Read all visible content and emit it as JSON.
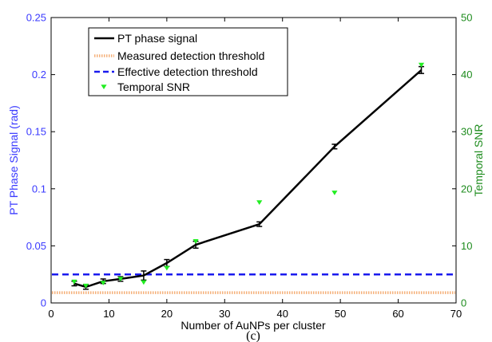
{
  "chart_data": {
    "type": "line",
    "caption": "(c)",
    "xlabel": "Number of AuNPs per cluster",
    "ylabel_left": "PT Phase Signal (rad)",
    "ylabel_right": "Temporal SNR",
    "xlim": [
      0,
      70
    ],
    "ylim_left": [
      0,
      0.25
    ],
    "ylim_right": [
      0,
      50
    ],
    "x_ticks": [
      "0",
      "10",
      "20",
      "30",
      "40",
      "50",
      "60",
      "70"
    ],
    "y_left_ticks": [
      "0",
      "0.05",
      "0.1",
      "0.15",
      "0.2",
      "0.25"
    ],
    "y_right_ticks": [
      "0",
      "10",
      "20",
      "30",
      "40",
      "50"
    ],
    "grid": false,
    "legend_position": "top-left",
    "colors": {
      "left_axis": "#3a3aff",
      "right_axis": "#1e8c1e",
      "pt_signal": "#000000",
      "measured_threshold": "#f5b07a",
      "effective_threshold": "#1a1aee",
      "snr": "#22ee22"
    },
    "series": [
      {
        "name": "PT phase signal",
        "axis": "left",
        "style": "line-errorbar",
        "x": [
          4,
          6,
          9,
          12,
          16,
          20,
          25,
          36,
          49,
          64
        ],
        "y": [
          0.017,
          0.014,
          0.019,
          0.021,
          0.024,
          0.035,
          0.051,
          0.069,
          0.137,
          0.204
        ],
        "err": [
          0.002,
          0.002,
          0.002,
          0.002,
          0.004,
          0.003,
          0.003,
          0.002,
          0.002,
          0.003
        ]
      },
      {
        "name": "Measured detection threshold",
        "axis": "left",
        "style": "hline-dotted",
        "y": 0.009
      },
      {
        "name": "Effective detection threshold",
        "axis": "left",
        "style": "hline-dashed",
        "y": 0.025
      },
      {
        "name": "Temporal SNR",
        "axis": "right",
        "style": "triangle-markers",
        "x": [
          4,
          6,
          9,
          12,
          16,
          20,
          25,
          36,
          49,
          64
        ],
        "y": [
          3.7,
          3.0,
          3.5,
          4.2,
          3.6,
          6.1,
          10.8,
          17.6,
          19.3,
          41.7
        ]
      }
    ]
  }
}
